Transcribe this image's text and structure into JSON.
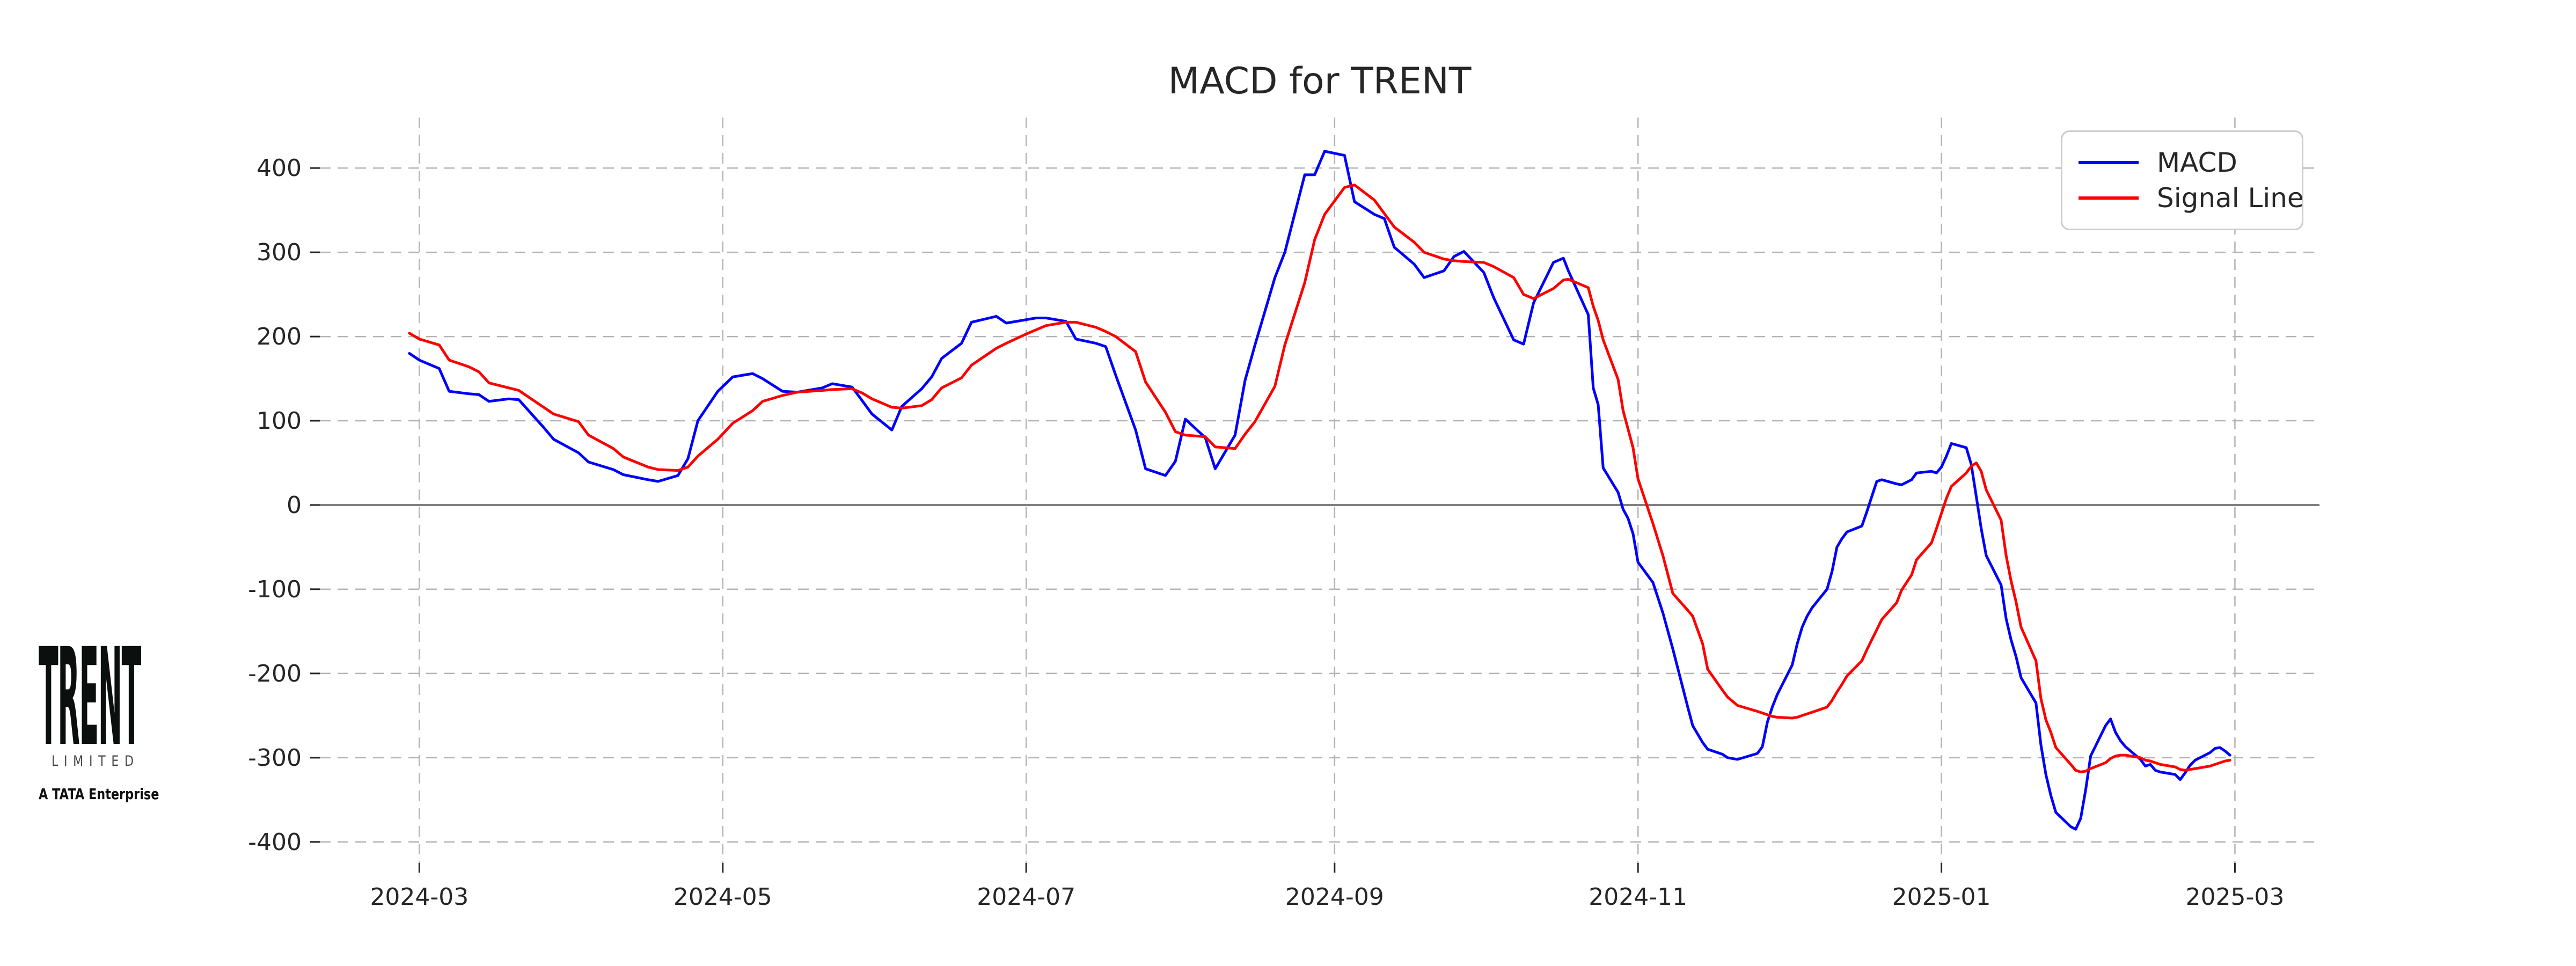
{
  "title": "MACD for TRENT",
  "logo": {
    "line1": "TRENT",
    "line2": "LIMITED",
    "line3": "A TATA Enterprise"
  },
  "legend": [
    {
      "label": "MACD",
      "color": "#0000ff"
    },
    {
      "label": "Signal Line",
      "color": "#ff0000"
    }
  ],
  "colors": {
    "macd_line": "#0000ff",
    "signal_line": "#ff0000",
    "gridline": "#b3b3b3",
    "zero_line": "#808080",
    "tick_text": "#262626",
    "legend_border": "#cccccc",
    "background": "#ffffff"
  },
  "chart_data": {
    "type": "line",
    "title": "MACD for TRENT",
    "xlabel": "",
    "ylabel": "",
    "grid": true,
    "grid_style": "dashed",
    "legend_position": "upper right",
    "legend_entries": [
      "MACD",
      "Signal Line"
    ],
    "ylim": [
      -425,
      460
    ],
    "xlim": [
      "2024-02-10",
      "2025-03-18"
    ],
    "y_ticks": [
      -400,
      -300,
      -200,
      -100,
      0,
      100,
      200,
      300,
      400
    ],
    "x_ticks": [
      {
        "date": "2024-03-01",
        "label": "2024-03"
      },
      {
        "date": "2024-05-01",
        "label": "2024-05"
      },
      {
        "date": "2024-07-01",
        "label": "2024-07"
      },
      {
        "date": "2024-09-01",
        "label": "2024-09"
      },
      {
        "date": "2024-11-01",
        "label": "2024-11"
      },
      {
        "date": "2025-01-01",
        "label": "2025-01"
      },
      {
        "date": "2025-03-01",
        "label": "2025-03"
      }
    ],
    "dates": [
      "2024-02-28",
      "2024-03-01",
      "2024-03-05",
      "2024-03-07",
      "2024-03-11",
      "2024-03-13",
      "2024-03-15",
      "2024-03-19",
      "2024-03-21",
      "2024-03-26",
      "2024-03-28",
      "2024-04-02",
      "2024-04-04",
      "2024-04-09",
      "2024-04-11",
      "2024-04-16",
      "2024-04-18",
      "2024-04-22",
      "2024-04-24",
      "2024-04-26",
      "2024-04-30",
      "2024-05-03",
      "2024-05-07",
      "2024-05-09",
      "2024-05-13",
      "2024-05-16",
      "2024-05-21",
      "2024-05-23",
      "2024-05-27",
      "2024-05-29",
      "2024-05-31",
      "2024-06-04",
      "2024-06-06",
      "2024-06-10",
      "2024-06-12",
      "2024-06-14",
      "2024-06-18",
      "2024-06-20",
      "2024-06-25",
      "2024-06-27",
      "2024-07-01",
      "2024-07-03",
      "2024-07-05",
      "2024-07-09",
      "2024-07-11",
      "2024-07-15",
      "2024-07-17",
      "2024-07-19",
      "2024-07-23",
      "2024-07-25",
      "2024-07-29",
      "2024-07-31",
      "2024-08-02",
      "2024-08-06",
      "2024-08-08",
      "2024-08-12",
      "2024-08-14",
      "2024-08-16",
      "2024-08-20",
      "2024-08-22",
      "2024-08-26",
      "2024-08-28",
      "2024-08-30",
      "2024-09-03",
      "2024-09-05",
      "2024-09-09",
      "2024-09-11",
      "2024-09-13",
      "2024-09-17",
      "2024-09-19",
      "2024-09-23",
      "2024-09-25",
      "2024-09-27",
      "2024-10-01",
      "2024-10-03",
      "2024-10-07",
      "2024-10-09",
      "2024-10-11",
      "2024-10-15",
      "2024-10-17",
      "2024-10-18",
      "2024-10-22",
      "2024-10-23",
      "2024-10-24",
      "2024-10-25",
      "2024-10-28",
      "2024-10-29",
      "2024-10-30",
      "2024-10-31",
      "2024-11-01",
      "2024-11-04",
      "2024-11-06",
      "2024-11-08",
      "2024-11-11",
      "2024-11-12",
      "2024-11-14",
      "2024-11-15",
      "2024-11-18",
      "2024-11-19",
      "2024-11-21",
      "2024-11-25",
      "2024-11-26",
      "2024-11-27",
      "2024-11-28",
      "2024-11-29",
      "2024-12-02",
      "2024-12-03",
      "2024-12-04",
      "2024-12-05",
      "2024-12-06",
      "2024-12-09",
      "2024-12-10",
      "2024-12-11",
      "2024-12-12",
      "2024-12-13",
      "2024-12-16",
      "2024-12-17",
      "2024-12-18",
      "2024-12-19",
      "2024-12-20",
      "2024-12-23",
      "2024-12-24",
      "2024-12-26",
      "2024-12-27",
      "2024-12-30",
      "2024-12-31",
      "2025-01-01",
      "2025-01-02",
      "2025-01-03",
      "2025-01-06",
      "2025-01-07",
      "2025-01-08",
      "2025-01-09",
      "2025-01-10",
      "2025-01-13",
      "2025-01-14",
      "2025-01-15",
      "2025-01-16",
      "2025-01-17",
      "2025-01-20",
      "2025-01-21",
      "2025-01-22",
      "2025-01-23",
      "2025-01-24",
      "2025-01-27",
      "2025-01-28",
      "2025-01-29",
      "2025-01-30",
      "2025-01-31",
      "2025-02-03",
      "2025-02-04",
      "2025-02-05",
      "2025-02-06",
      "2025-02-07",
      "2025-02-10",
      "2025-02-11",
      "2025-02-12",
      "2025-02-13",
      "2025-02-14",
      "2025-02-17",
      "2025-02-18",
      "2025-02-19",
      "2025-02-20",
      "2025-02-21",
      "2025-02-24",
      "2025-02-25",
      "2025-02-26",
      "2025-02-27",
      "2025-02-28"
    ],
    "series": [
      {
        "name": "MACD",
        "color": "#0000ff",
        "values": [
          180,
          172,
          162,
          135,
          132,
          131,
          123,
          126,
          125,
          92,
          78,
          62,
          51,
          42,
          36,
          30,
          28,
          35,
          55,
          100,
          135,
          152,
          156,
          150,
          135,
          134,
          139,
          144,
          140,
          124,
          108,
          89,
          117,
          138,
          152,
          174,
          192,
          217,
          224,
          216,
          220,
          222,
          222,
          218,
          197,
          192,
          188,
          154,
          89,
          43,
          35,
          52,
          102,
          80,
          43,
          83,
          148,
          190,
          270,
          300,
          392,
          392,
          420,
          415,
          360,
          345,
          340,
          306,
          286,
          270,
          278,
          295,
          301,
          276,
          246,
          196,
          191,
          240,
          288,
          293,
          278,
          226,
          139,
          119,
          44,
          15,
          -5,
          -16,
          -34,
          -68,
          -92,
          -128,
          -171,
          -240,
          -262,
          -282,
          -290,
          -296,
          -300,
          -302,
          -295,
          -287,
          -258,
          -240,
          -225,
          -190,
          -165,
          -145,
          -132,
          -122,
          -100,
          -79,
          -50,
          -40,
          -32,
          -25,
          -8,
          10,
          28,
          30,
          25,
          24,
          30,
          38,
          40,
          38,
          45,
          58,
          73,
          68,
          48,
          10,
          -28,
          -60,
          -95,
          -135,
          -160,
          -180,
          -205,
          -235,
          -285,
          -320,
          -345,
          -365,
          -382,
          -385,
          -372,
          -338,
          -298,
          -262,
          -254,
          -270,
          -280,
          -287,
          -302,
          -310,
          -308,
          -315,
          -317,
          -320,
          -326,
          -318,
          -309,
          -303,
          -294,
          -289,
          -288,
          -292,
          -297
        ]
      },
      {
        "name": "Signal Line",
        "color": "#ff0000",
        "values": [
          204,
          197,
          190,
          172,
          164,
          158,
          145,
          139,
          136,
          116,
          108,
          99,
          83,
          67,
          57,
          45,
          42,
          41,
          45,
          58,
          78,
          97,
          112,
          123,
          130,
          134,
          136,
          137,
          138,
          133,
          126,
          116,
          115,
          118,
          125,
          139,
          151,
          166,
          186,
          192,
          203,
          208,
          213,
          217,
          217,
          211,
          206,
          200,
          182,
          146,
          110,
          87,
          83,
          81,
          69,
          67,
          84,
          99,
          141,
          190,
          264,
          315,
          345,
          377,
          380,
          362,
          346,
          330,
          312,
          300,
          292,
          290,
          289,
          288,
          283,
          270,
          250,
          245,
          257,
          267,
          268,
          258,
          236,
          219,
          196,
          149,
          112,
          90,
          68,
          31,
          -22,
          -60,
          -105,
          -125,
          -132,
          -165,
          -195,
          -220,
          -228,
          -238,
          -245,
          -247,
          -249,
          -251,
          -252,
          -253,
          -252,
          -250,
          -248,
          -246,
          -240,
          -232,
          -222,
          -213,
          -203,
          -185,
          -172,
          -160,
          -148,
          -136,
          -116,
          -101,
          -83,
          -65,
          -45,
          -28,
          -10,
          8,
          22,
          38,
          46,
          50,
          40,
          18,
          -18,
          -60,
          -90,
          -115,
          -145,
          -185,
          -230,
          -255,
          -270,
          -288,
          -308,
          -315,
          -317,
          -316,
          -313,
          -306,
          -301,
          -298,
          -297,
          -297,
          -300,
          -303,
          -304,
          -306,
          -308,
          -311,
          -314,
          -315,
          -314,
          -313,
          -310,
          -308,
          -306,
          -304,
          -303
        ]
      }
    ]
  }
}
